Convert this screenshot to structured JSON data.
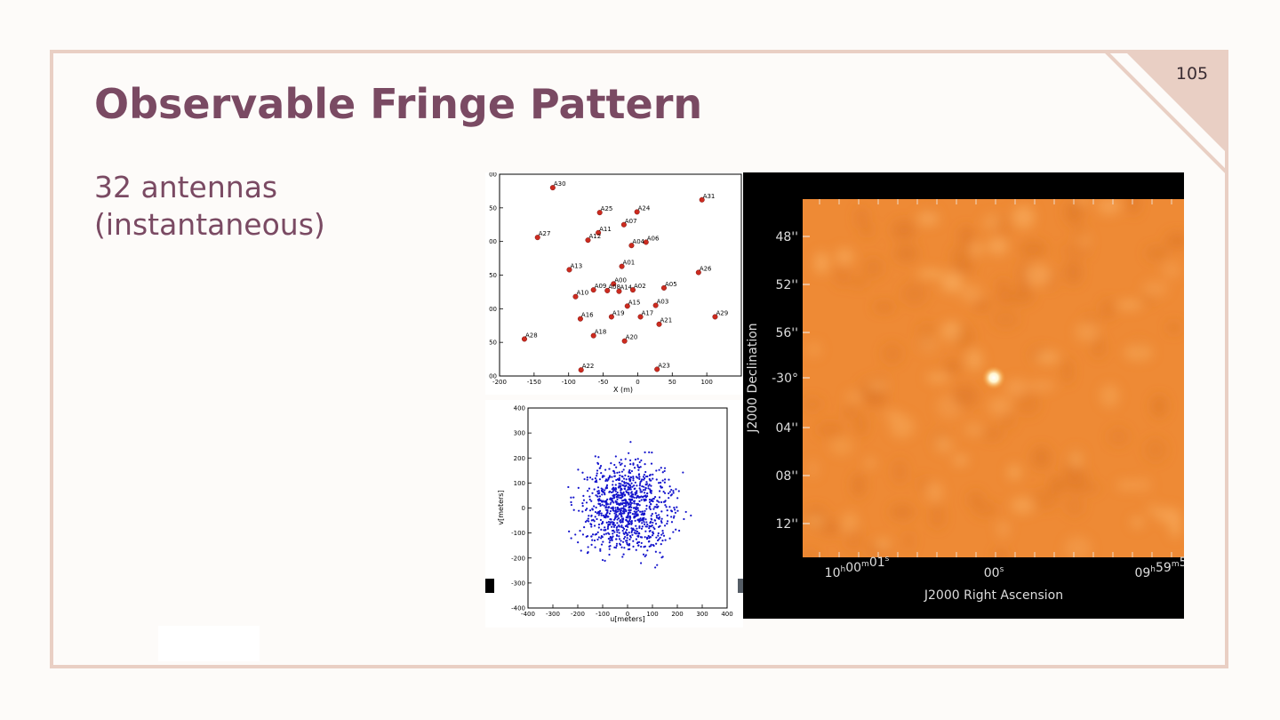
{
  "slide": {
    "title": "Observable Fringe Pattern",
    "page_number": "105",
    "body_lines": [
      "32 antennas",
      "(instantaneous)"
    ]
  },
  "colors": {
    "background": "#fdfbf9",
    "frame": "#e9cfc4",
    "title": "#7a4a63",
    "antenna_marker": "#cc2b1f",
    "uv_points": "#1414cc",
    "sky_map": "#ee8a35"
  },
  "chart_data": [
    {
      "type": "scatter",
      "xlabel": "X (m)",
      "ylabel": "",
      "xlim": [
        -200,
        150
      ],
      "ylim": [
        -300,
        0
      ],
      "xticks": [
        "-200",
        "-150",
        "-100",
        "-50",
        "0",
        "50",
        "100"
      ],
      "yticks": [
        "00",
        "50",
        "00",
        "50",
        "00",
        "50",
        "00"
      ],
      "points": [
        {
          "label": "A30",
          "x": -123,
          "y": -20
        },
        {
          "label": "A31",
          "x": 93,
          "y": -38
        },
        {
          "label": "A25",
          "x": -55,
          "y": -57
        },
        {
          "label": "A24",
          "x": -1,
          "y": -56
        },
        {
          "label": "A07",
          "x": -20,
          "y": -75
        },
        {
          "label": "A27",
          "x": -145,
          "y": -94
        },
        {
          "label": "A11",
          "x": -57,
          "y": -87
        },
        {
          "label": "A12",
          "x": -72,
          "y": -98
        },
        {
          "label": "A06",
          "x": 12,
          "y": -101
        },
        {
          "label": "A04",
          "x": -9,
          "y": -106
        },
        {
          "label": "A01",
          "x": -23,
          "y": -137
        },
        {
          "label": "A13",
          "x": -99,
          "y": -142
        },
        {
          "label": "A26",
          "x": 88,
          "y": -146
        },
        {
          "label": "A00",
          "x": -35,
          "y": -163
        },
        {
          "label": "A09",
          "x": -64,
          "y": -172
        },
        {
          "label": "A08",
          "x": -44,
          "y": -173
        },
        {
          "label": "A14",
          "x": -27,
          "y": -174
        },
        {
          "label": "A02",
          "x": -7,
          "y": -172
        },
        {
          "label": "A05",
          "x": 38,
          "y": -169
        },
        {
          "label": "A10",
          "x": -90,
          "y": -182
        },
        {
          "label": "A15",
          "x": -15,
          "y": -196
        },
        {
          "label": "A03",
          "x": 26,
          "y": -195
        },
        {
          "label": "A16",
          "x": -83,
          "y": -215
        },
        {
          "label": "A19",
          "x": -38,
          "y": -212
        },
        {
          "label": "A17",
          "x": 4,
          "y": -212
        },
        {
          "label": "A29",
          "x": 112,
          "y": -212
        },
        {
          "label": "A21",
          "x": 31,
          "y": -223
        },
        {
          "label": "A28",
          "x": -164,
          "y": -245
        },
        {
          "label": "A18",
          "x": -64,
          "y": -240
        },
        {
          "label": "A20",
          "x": -19,
          "y": -248
        },
        {
          "label": "A22",
          "x": -82,
          "y": -291
        },
        {
          "label": "A23",
          "x": 28,
          "y": -290
        }
      ]
    },
    {
      "type": "scatter",
      "xlabel": "u[meters]",
      "ylabel": "v[meters]",
      "xlim": [
        -400,
        400
      ],
      "ylim": [
        -400,
        400
      ],
      "xticks": [
        "-400",
        "-300",
        "-200",
        "-100",
        "0",
        "100",
        "200",
        "300",
        "400"
      ],
      "yticks": [
        "400",
        "300",
        "200",
        "100",
        "0",
        "-100",
        "-200",
        "-300",
        "-400"
      ],
      "point_count": 992,
      "distribution": "gaussian, sigma ≈ 90 m, |r| < 270 m"
    },
    {
      "type": "heatmap",
      "xlabel": "J2000 Right Ascension",
      "ylabel": "J2000 Declination",
      "yticks": [
        "48''",
        "52''",
        "56''",
        "-30°",
        "04''",
        "08''",
        "12''"
      ],
      "xticks": [
        "10h00m01s",
        "00s",
        "09h59m5"
      ],
      "source": "bright point source at map center"
    }
  ]
}
